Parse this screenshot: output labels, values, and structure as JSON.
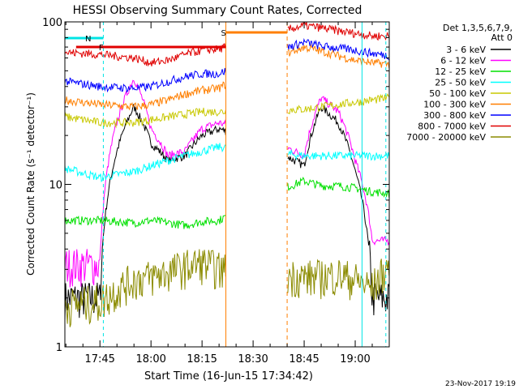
{
  "chart_data": {
    "type": "line",
    "title": "HESSI Observing Summary Count Rates, Corrected",
    "xlabel": "Start Time (16-Jun-15 17:34:42)",
    "ylabel": "Corrected Count Rate (s⁻¹ detector⁻¹)",
    "yscale": "log",
    "ylim": [
      1,
      100
    ],
    "xlim_minutes": [
      17.58,
      19.17
    ],
    "x_ticks": [
      "17:45",
      "18:00",
      "18:15",
      "18:30",
      "18:45",
      "19:00"
    ],
    "y_ticks": [
      "1",
      "10",
      "100"
    ],
    "legend_header": [
      "Det 1,3,5,6,7,9,",
      "Att 0"
    ],
    "legend_position": "right",
    "footer_stamp": "23-Nov-2017 19:19",
    "gaps": [
      {
        "from": "18:22",
        "to": "18:40"
      }
    ],
    "flags": [
      {
        "label": "N",
        "color": "#00e5e5",
        "from": "17:34",
        "to": "17:46"
      },
      {
        "label": "F",
        "color": "#e00000",
        "from": "17:38",
        "to": "18:22"
      },
      {
        "label": "S",
        "color": "#ff7f00",
        "from": "18:22",
        "to": "18:40"
      }
    ],
    "series": [
      {
        "name": "3 - 6 keV",
        "color": "#000000",
        "x": [
          "17:35",
          "17:45",
          "17:55",
          "18:00",
          "18:05",
          "18:10",
          "18:15",
          "18:20",
          "18:45",
          "18:50",
          "18:55",
          "19:00",
          "19:05",
          "19:10"
        ],
        "y": [
          2.0,
          2.0,
          30,
          18,
          14,
          15,
          20,
          22,
          13,
          30,
          24,
          12,
          2.0,
          2.0
        ]
      },
      {
        "name": "6 - 12 keV",
        "color": "#ff00ff",
        "x": [
          "17:35",
          "17:45",
          "17:55",
          "18:00",
          "18:05",
          "18:10",
          "18:15",
          "18:20",
          "18:45",
          "18:50",
          "18:55",
          "19:00",
          "19:05",
          "19:10"
        ],
        "y": [
          3.2,
          3.2,
          45,
          22,
          15,
          16,
          22,
          24,
          15,
          34,
          28,
          14,
          4.5,
          4.5
        ]
      },
      {
        "name": "12 - 25 keV",
        "color": "#00e000",
        "x": [
          "17:35",
          "17:45",
          "17:55",
          "18:00",
          "18:05",
          "18:10",
          "18:15",
          "18:20",
          "18:45",
          "18:50",
          "18:55",
          "19:00",
          "19:05",
          "19:10"
        ],
        "y": [
          6.0,
          6.0,
          5.8,
          6.0,
          5.8,
          5.6,
          5.9,
          6.0,
          10.5,
          9.8,
          9.8,
          9.5,
          9.0,
          8.8
        ]
      },
      {
        "name": "25 - 50 keV",
        "color": "#00ffff",
        "x": [
          "17:35",
          "17:45",
          "17:55",
          "18:00",
          "18:05",
          "18:10",
          "18:15",
          "18:20",
          "18:45",
          "18:50",
          "18:55",
          "19:00",
          "19:05",
          "19:10"
        ],
        "y": [
          12.5,
          11.0,
          12.0,
          13.0,
          14.0,
          15.0,
          16.0,
          17.0,
          15.0,
          15.0,
          15.0,
          15.0,
          15.0,
          15.0
        ]
      },
      {
        "name": "50 - 100 keV",
        "color": "#c8c800",
        "x": [
          "17:35",
          "17:45",
          "17:55",
          "18:00",
          "18:05",
          "18:10",
          "18:15",
          "18:20",
          "18:45",
          "18:50",
          "18:55",
          "19:00",
          "19:05",
          "19:10"
        ],
        "y": [
          26,
          24,
          24,
          25,
          26,
          27,
          28,
          28,
          29,
          30,
          31,
          32,
          33,
          34
        ]
      },
      {
        "name": "100 - 300 keV",
        "color": "#ff7f00",
        "x": [
          "17:35",
          "17:45",
          "17:55",
          "18:00",
          "18:05",
          "18:10",
          "18:15",
          "18:20",
          "18:45",
          "18:50",
          "18:55",
          "19:00",
          "19:05",
          "19:10"
        ],
        "y": [
          33,
          31,
          30,
          31,
          33,
          36,
          38,
          39,
          70,
          66,
          62,
          58,
          56,
          55
        ]
      },
      {
        "name": "300 - 800 keV",
        "color": "#0000ff",
        "x": [
          "17:35",
          "17:45",
          "17:55",
          "18:00",
          "18:05",
          "18:10",
          "18:15",
          "18:20",
          "18:45",
          "18:50",
          "18:55",
          "19:00",
          "19:05",
          "19:10"
        ],
        "y": [
          43,
          40,
          39,
          40,
          43,
          46,
          48,
          48,
          75,
          71,
          69,
          67,
          64,
          62
        ]
      },
      {
        "name": "800 - 7000 keV",
        "color": "#e00000",
        "x": [
          "17:35",
          "17:45",
          "17:55",
          "18:00",
          "18:05",
          "18:10",
          "18:15",
          "18:20",
          "18:45",
          "18:50",
          "18:55",
          "19:00",
          "19:05",
          "19:10"
        ],
        "y": [
          65,
          63,
          60,
          56,
          58,
          63,
          67,
          68,
          95,
          92,
          88,
          85,
          82,
          82
        ]
      },
      {
        "name": "7000 - 20000 keV",
        "color": "#8b8b00",
        "x": [
          "17:35",
          "17:45",
          "17:55",
          "18:00",
          "18:05",
          "18:10",
          "18:15",
          "18:20",
          "18:45",
          "18:50",
          "18:55",
          "19:00",
          "19:05",
          "19:10"
        ],
        "y": [
          1.8,
          1.9,
          2.6,
          2.7,
          2.9,
          3.1,
          3.3,
          3.0,
          2.7,
          2.7,
          2.8,
          2.6,
          2.3,
          3.2
        ]
      }
    ]
  }
}
